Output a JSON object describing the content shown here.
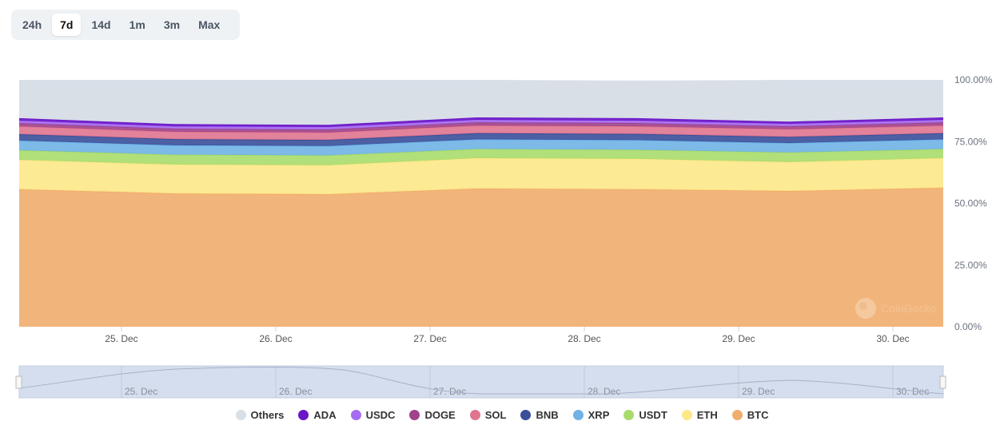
{
  "range_selector": {
    "options": [
      "24h",
      "7d",
      "14d",
      "1m",
      "3m",
      "Max"
    ],
    "active": "7d"
  },
  "watermark": "CoinGecko",
  "chart_data": {
    "type": "area",
    "stacked": true,
    "x": [
      24.34,
      25.34,
      26.34,
      27.3,
      28.34,
      29.33,
      30.33
    ],
    "x_ticks": [
      "25. Dec",
      "26. Dec",
      "27. Dec",
      "28. Dec",
      "29. Dec",
      "30. Dec"
    ],
    "x_tick_values": [
      25,
      26,
      27,
      28,
      29,
      30
    ],
    "y_ticks": [
      "0.00%",
      "25.00%",
      "50.00%",
      "75.00%",
      "100.00%"
    ],
    "ylim": [
      0,
      100
    ],
    "legend_position": "bottom",
    "series": [
      {
        "name": "BTC",
        "color": "#f0ad6e",
        "values": [
          55.7,
          54.0,
          53.7,
          56.0,
          55.7,
          55.0,
          56.3
        ]
      },
      {
        "name": "ETH",
        "color": "#fde888",
        "values": [
          11.9,
          11.7,
          11.7,
          12.3,
          12.3,
          11.7,
          12.0
        ]
      },
      {
        "name": "USDT",
        "color": "#a8db6c",
        "values": [
          3.9,
          4.0,
          4.0,
          3.7,
          3.7,
          3.9,
          3.7
        ]
      },
      {
        "name": "XRP",
        "color": "#6fb2e6",
        "values": [
          3.9,
          3.8,
          3.8,
          3.9,
          3.9,
          3.8,
          3.9
        ]
      },
      {
        "name": "BNB",
        "color": "#3a4f9a",
        "values": [
          2.6,
          2.5,
          2.5,
          2.5,
          2.5,
          2.5,
          2.5
        ]
      },
      {
        "name": "SOL",
        "color": "#e07590",
        "values": [
          3.2,
          3.0,
          3.0,
          3.1,
          3.1,
          3.1,
          3.1
        ]
      },
      {
        "name": "DOGE",
        "color": "#a0438a",
        "values": [
          1.3,
          1.2,
          1.2,
          1.3,
          1.3,
          1.2,
          1.3
        ]
      },
      {
        "name": "USDC",
        "color": "#a56cf0",
        "values": [
          1.0,
          1.0,
          1.0,
          1.0,
          1.0,
          1.0,
          1.0
        ]
      },
      {
        "name": "ADA",
        "color": "#6a14c8",
        "values": [
          1.0,
          0.9,
          0.9,
          1.0,
          1.0,
          0.9,
          1.0
        ]
      },
      {
        "name": "Others",
        "color": "#d8dfe7",
        "values": [
          15.5,
          17.9,
          18.2,
          15.2,
          15.2,
          16.9,
          15.2
        ]
      }
    ],
    "legend": [
      "Others",
      "ADA",
      "USDC",
      "DOGE",
      "SOL",
      "BNB",
      "XRP",
      "USDT",
      "ETH",
      "BTC"
    ]
  }
}
